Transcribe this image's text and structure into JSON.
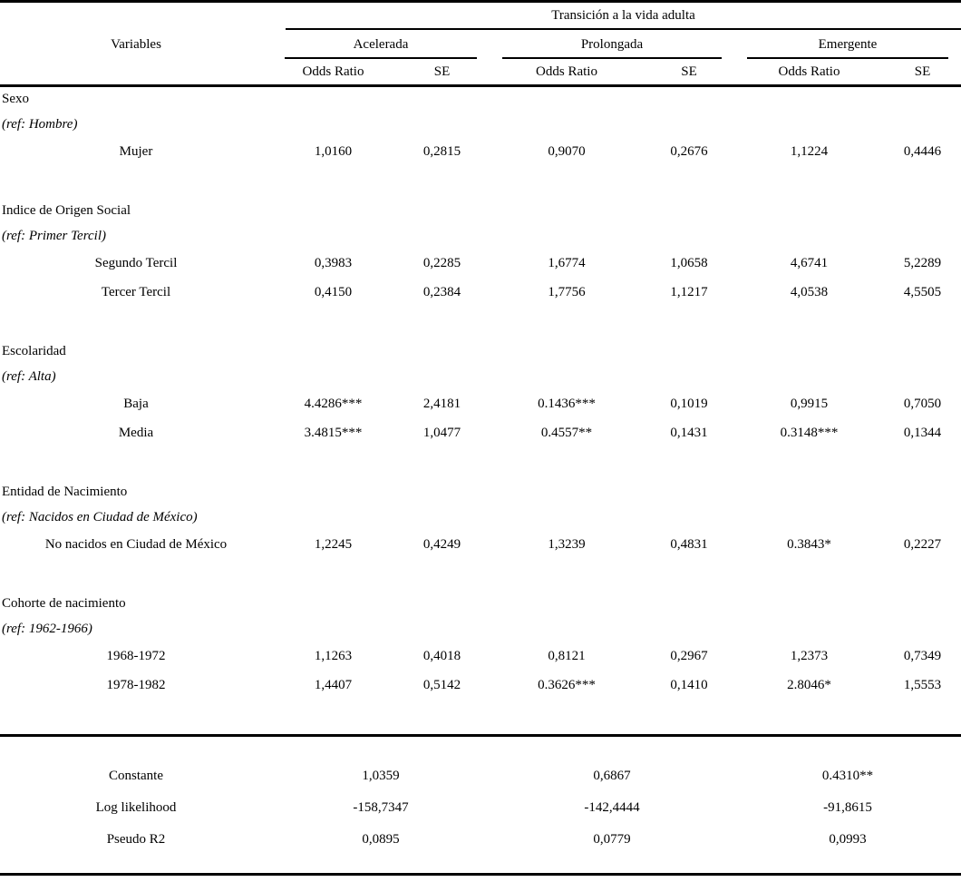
{
  "table": {
    "span_header": "Transición a la vida adulta",
    "variables_header": "Variables",
    "groups": [
      "Acelerada",
      "Prolongada",
      "Emergente"
    ],
    "subheaders": {
      "odds_ratio": "Odds Ratio",
      "se": "SE"
    },
    "sections": [
      {
        "title": "Sexo",
        "ref": "(ref: Hombre)",
        "rows": [
          {
            "label": "Mujer",
            "values": [
              "1,0160",
              "0,2815",
              "0,9070",
              "0,2676",
              "1,1224",
              "0,4446"
            ]
          }
        ]
      },
      {
        "title": "Indice de Origen Social",
        "ref": "(ref: Primer Tercil)",
        "rows": [
          {
            "label": "Segundo Tercil",
            "values": [
              "0,3983",
              "0,2285",
              "1,6774",
              "1,0658",
              "4,6741",
              "5,2289"
            ]
          },
          {
            "label": "Tercer Tercil",
            "values": [
              "0,4150",
              "0,2384",
              "1,7756",
              "1,1217",
              "4,0538",
              "4,5505"
            ]
          }
        ]
      },
      {
        "title": "Escolaridad",
        "ref": "(ref: Alta)",
        "rows": [
          {
            "label": "Baja",
            "values": [
              "4.4286***",
              "2,4181",
              "0.1436***",
              "0,1019",
              "0,9915",
              "0,7050"
            ]
          },
          {
            "label": "Media",
            "values": [
              "3.4815***",
              "1,0477",
              "0.4557**",
              "0,1431",
              "0.3148***",
              "0,1344"
            ]
          }
        ]
      },
      {
        "title": "Entidad de Nacimiento",
        "ref": "(ref: Nacidos en Ciudad de México)",
        "rows": [
          {
            "label": "No nacidos en Ciudad de México",
            "values": [
              "1,2245",
              "0,4249",
              "1,3239",
              "0,4831",
              "0.3843*",
              "0,2227"
            ]
          }
        ]
      },
      {
        "title": "Cohorte de nacimiento",
        "ref": "(ref: 1962-1966)",
        "rows": [
          {
            "label": "1968-1972",
            "values": [
              "1,1263",
              "0,4018",
              "0,8121",
              "0,2967",
              "1,2373",
              "0,7349"
            ]
          },
          {
            "label": "1978-1982",
            "values": [
              "1,4407",
              "0,5142",
              "0.3626***",
              "0,1410",
              "2.8046*",
              "1,5553"
            ]
          }
        ]
      }
    ],
    "summary": [
      {
        "label": "Constante",
        "values": [
          "1,0359",
          "0,6867",
          "0.4310**"
        ]
      },
      {
        "label": "Log likelihood",
        "values": [
          "-158,7347",
          "-142,4444",
          "-91,8615"
        ]
      },
      {
        "label": "Pseudo R2",
        "values": [
          "0,0895",
          "0,0779",
          "0,0993"
        ]
      }
    ]
  }
}
